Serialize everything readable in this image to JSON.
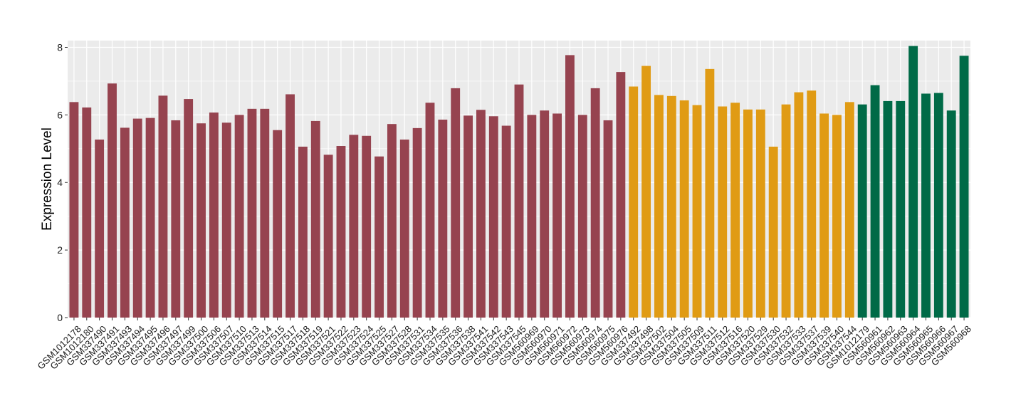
{
  "chart_data": {
    "type": "bar",
    "title": "",
    "xlabel": "",
    "ylabel": "Expression Level",
    "ylim": [
      0,
      8.2
    ],
    "yticks": [
      0,
      2,
      4,
      6,
      8
    ],
    "grid": true,
    "legend": "none",
    "colors": {
      "panel_background": "#ebebeb",
      "grid_major": "#ffffff",
      "group_1": "#96434f",
      "group_2": "#e09b14",
      "group_3": "#006a47"
    },
    "categories": [
      "GSM1012178",
      "GSM1012180",
      "GSM337490",
      "GSM337491",
      "GSM337493",
      "GSM337494",
      "GSM337495",
      "GSM337496",
      "GSM337497",
      "GSM337499",
      "GSM337500",
      "GSM337506",
      "GSM337507",
      "GSM337510",
      "GSM337513",
      "GSM337514",
      "GSM337515",
      "GSM337517",
      "GSM337518",
      "GSM337519",
      "GSM337521",
      "GSM337522",
      "GSM337523",
      "GSM337524",
      "GSM337525",
      "GSM337527",
      "GSM337528",
      "GSM337531",
      "GSM337534",
      "GSM337535",
      "GSM337536",
      "GSM337538",
      "GSM337541",
      "GSM337542",
      "GSM337543",
      "GSM337545",
      "GSM560969",
      "GSM560970",
      "GSM560971",
      "GSM560972",
      "GSM560973",
      "GSM560974",
      "GSM560975",
      "GSM560976",
      "GSM337492",
      "GSM337498",
      "GSM337502",
      "GSM337504",
      "GSM337505",
      "GSM337509",
      "GSM337511",
      "GSM337512",
      "GSM337516",
      "GSM337520",
      "GSM337529",
      "GSM337530",
      "GSM337532",
      "GSM337533",
      "GSM337537",
      "GSM337539",
      "GSM337540",
      "GSM337544",
      "GSM1012179",
      "GSM560961",
      "GSM560962",
      "GSM560963",
      "GSM560964",
      "GSM560965",
      "GSM560966",
      "GSM560967",
      "GSM560968"
    ],
    "values": [
      6.38,
      6.22,
      5.27,
      6.93,
      5.62,
      5.89,
      5.91,
      6.57,
      5.84,
      6.47,
      5.75,
      6.07,
      5.77,
      6.0,
      6.18,
      6.18,
      5.55,
      6.61,
      5.06,
      5.82,
      4.82,
      5.08,
      5.41,
      5.38,
      4.77,
      5.73,
      5.27,
      5.61,
      6.36,
      5.86,
      6.79,
      5.98,
      6.15,
      5.96,
      5.68,
      6.9,
      6.0,
      6.13,
      6.04,
      7.77,
      6.0,
      6.79,
      5.84,
      7.27,
      6.84,
      7.45,
      6.59,
      6.56,
      6.43,
      6.29,
      7.36,
      6.25,
      6.36,
      6.16,
      6.16,
      5.06,
      6.31,
      6.67,
      6.72,
      6.04,
      6.0,
      6.38,
      6.31,
      6.88,
      6.41,
      6.41,
      8.04,
      6.63,
      6.65,
      6.13,
      7.75
    ],
    "groups": [
      1,
      1,
      1,
      1,
      1,
      1,
      1,
      1,
      1,
      1,
      1,
      1,
      1,
      1,
      1,
      1,
      1,
      1,
      1,
      1,
      1,
      1,
      1,
      1,
      1,
      1,
      1,
      1,
      1,
      1,
      1,
      1,
      1,
      1,
      1,
      1,
      1,
      1,
      1,
      1,
      1,
      1,
      1,
      1,
      2,
      2,
      2,
      2,
      2,
      2,
      2,
      2,
      2,
      2,
      2,
      2,
      2,
      2,
      2,
      2,
      2,
      2,
      3,
      3,
      3,
      3,
      3,
      3,
      3,
      3,
      3
    ]
  }
}
